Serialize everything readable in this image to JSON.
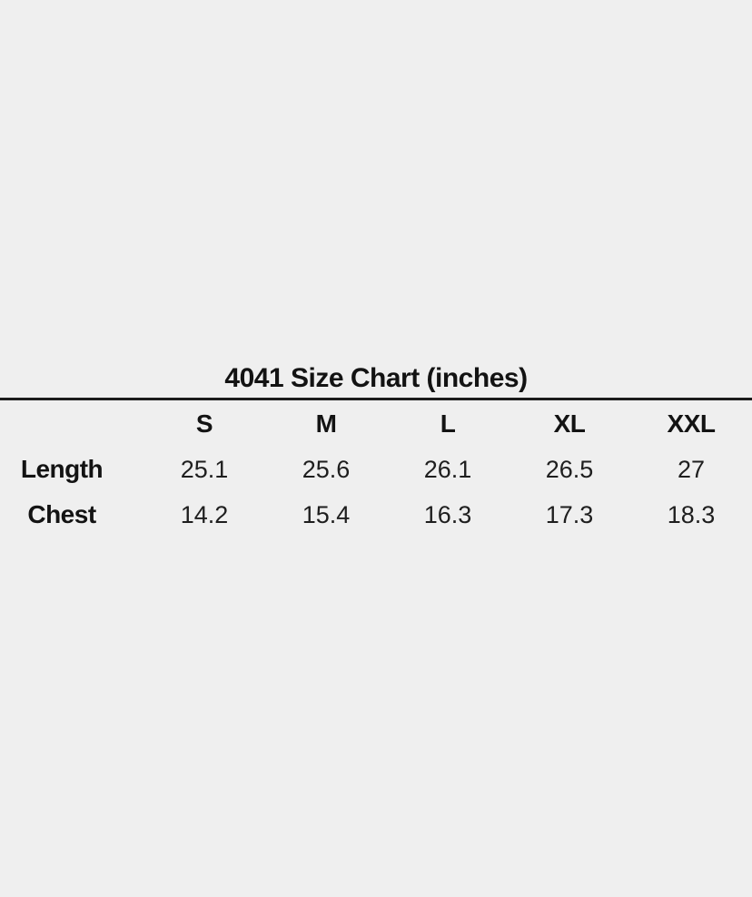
{
  "page": {
    "background_color": "#efefef",
    "text_color": "#161616",
    "rule_color": "#1b1b1b"
  },
  "chart_data": {
    "type": "table",
    "title": "4041 Size Chart (inches)",
    "columns": [
      "",
      "S",
      "M",
      "L",
      "XL",
      "XXL"
    ],
    "rows": [
      {
        "label": "Length",
        "values": [
          25.1,
          25.6,
          26.1,
          26.5,
          27
        ]
      },
      {
        "label": "Chest",
        "values": [
          14.2,
          15.4,
          16.3,
          17.3,
          18.3
        ]
      }
    ],
    "layout": {
      "title_position": "top-center",
      "rule_below_title": true,
      "first_column": "row-labels",
      "alignment": "center"
    }
  }
}
